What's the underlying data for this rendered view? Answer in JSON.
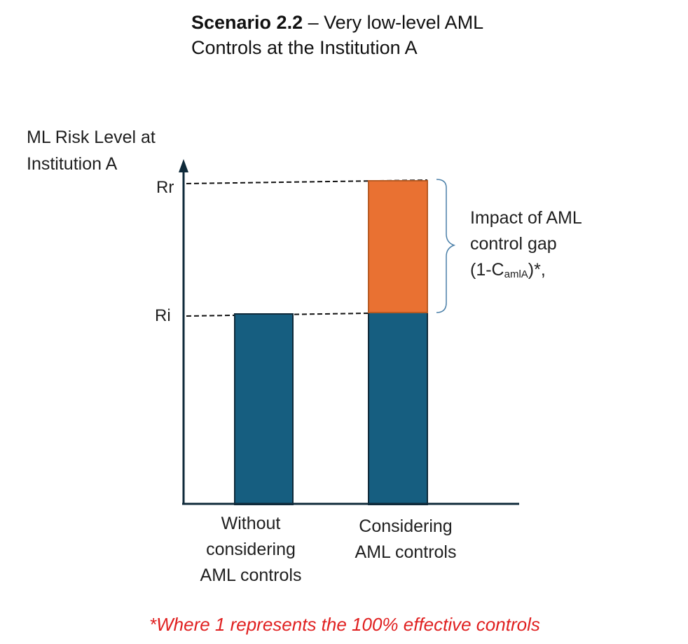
{
  "title": {
    "bold": "Scenario 2.2",
    "rest_line1": " – Very low-level AML",
    "line2": "Controls at the Institution A"
  },
  "y_axis": {
    "label_line1": "ML Risk Level at",
    "label_line2": "Institution A",
    "ticks": [
      "Rr",
      "Ri"
    ]
  },
  "chart_data": {
    "type": "bar",
    "categories": [
      "Without considering AML controls",
      "Considering AML controls"
    ],
    "category_lines": [
      [
        "Without",
        "considering",
        "AML controls"
      ],
      [
        "Considering",
        "AML controls"
      ]
    ],
    "series": [
      {
        "values": [
          1,
          1
        ]
      },
      {
        "values": [
          0,
          0.69
        ]
      }
    ],
    "levels": {
      "Ri": 1,
      "Rr": 1.69
    },
    "ylim": [
      0,
      1.69
    ],
    "colors": {
      "base": "#165e80",
      "gap": "#e97132",
      "axis": "#0f2a3a"
    },
    "annotation": {
      "line1": "Impact of AML",
      "line2": "control gap",
      "line3_prefix": "(1-C",
      "line3_sub": "amlA",
      "line3_suffix": ")*,"
    }
  },
  "footnote": "*Where 1 represents the 100% effective controls"
}
